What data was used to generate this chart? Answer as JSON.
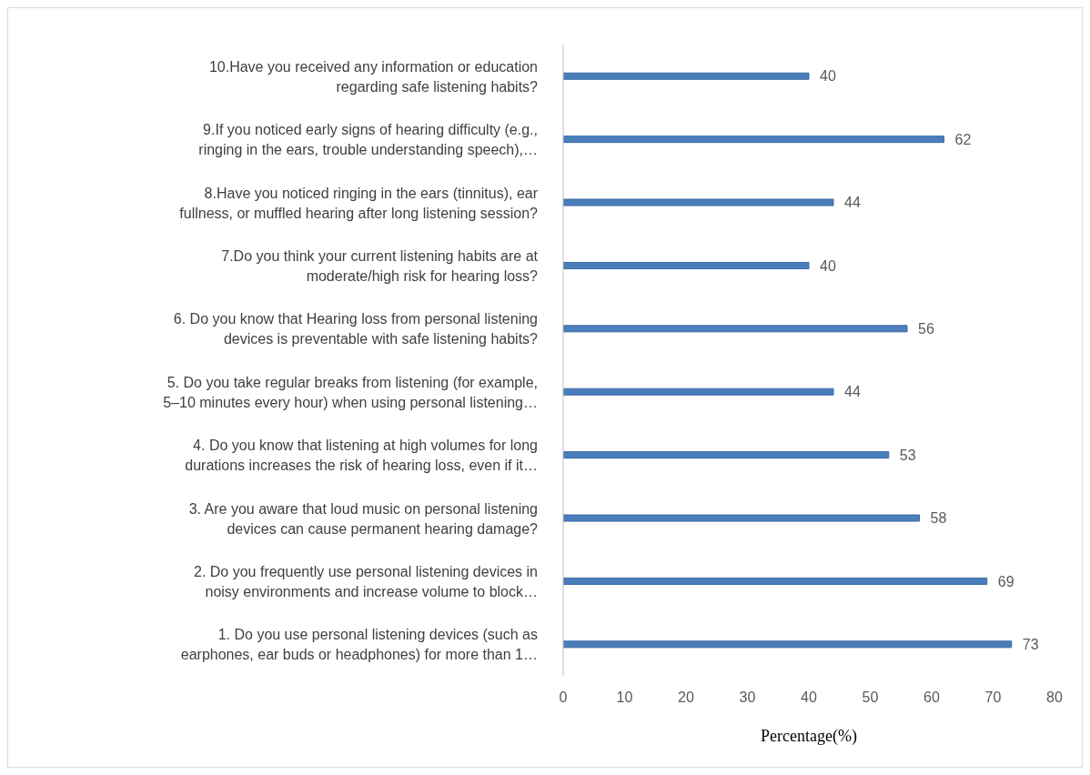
{
  "chart_data": {
    "type": "bar",
    "orientation": "horizontal",
    "categories": [
      "10.Have you received any information or education regarding safe listening habits?",
      "9.If you noticed early signs of hearing difficulty (e.g., ringing in the ears, trouble understanding speech),…",
      "8.Have you noticed ringing in the ears (tinnitus), ear fullness, or muffled hearing after long listening session?",
      "7.Do you think your current listening habits are at moderate/high risk for hearing loss?",
      "6. Do you know that Hearing loss from personal listening devices is preventable with safe listening habits?",
      "5. Do you take regular breaks from listening (for example, 5–10 minutes every hour) when using personal listening…",
      "4. Do you know that listening at high volumes for long durations increases the risk of hearing loss, even if it…",
      "3. Are you aware that loud music on personal listening devices can cause permanent hearing damage?",
      "2. Do you frequently use personal listening devices in noisy environments and increase volume to block…",
      "1. Do you use personal listening devices (such as earphones, ear buds or headphones) for more than 1…"
    ],
    "values": [
      40,
      62,
      44,
      40,
      56,
      44,
      53,
      58,
      69,
      73
    ],
    "color": "#4a7ebb",
    "xlabel": "Percentage(%)",
    "xlim": [
      0,
      80
    ],
    "xticks": [
      0,
      10,
      20,
      30,
      40,
      50,
      60,
      70,
      80
    ],
    "data_labels": true,
    "grid": false,
    "legend": false
  }
}
